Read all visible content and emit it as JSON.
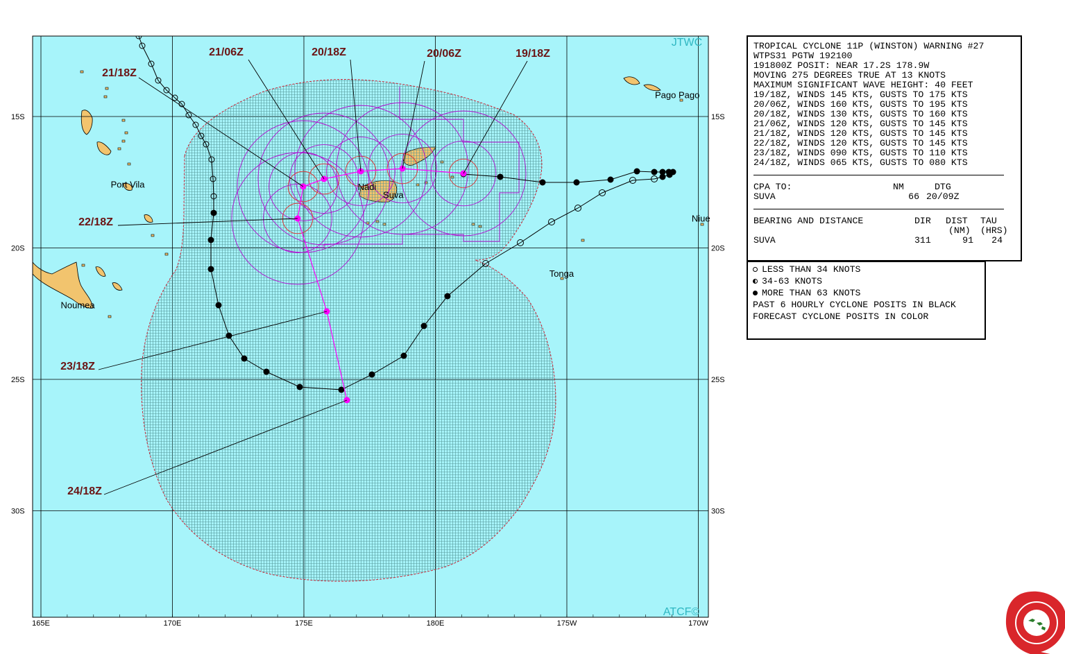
{
  "map": {
    "lon_labels": [
      "165E",
      "170E",
      "175E",
      "180E",
      "175W",
      "170W"
    ],
    "lat_labels": [
      "15S",
      "20S",
      "25S",
      "30S"
    ],
    "agency": "JTWC",
    "atcf": "ATCF©",
    "colors": {
      "ocean": "#a7f4fa",
      "land": "#f2c46e",
      "track_past": "#000000",
      "track_forecast": "#ff00ff",
      "wind_radius": "#b010d0",
      "danger_area": "#cc2233"
    },
    "places": [
      {
        "name": "Pago Pago",
        "lon": -170.8,
        "lat": -14.3
      },
      {
        "name": "Port Vila",
        "lon": 168.3,
        "lat": -17.7
      },
      {
        "name": "Noumea",
        "lon": 166.4,
        "lat": -22.3
      },
      {
        "name": "Nadi",
        "lon": 177.4,
        "lat": -17.8
      },
      {
        "name": "Suva",
        "lon": 178.4,
        "lat": -18.1
      },
      {
        "name": "Tonga",
        "lon": -175.2,
        "lat": -21.1
      },
      {
        "name": "Niue",
        "lon": -169.9,
        "lat": -19.0
      }
    ],
    "forecast_labels": [
      "19/18Z",
      "20/06Z",
      "20/18Z",
      "21/06Z",
      "21/18Z",
      "22/18Z",
      "23/18Z",
      "24/18Z"
    ]
  },
  "warning": {
    "lines": [
      "TROPICAL CYCLONE 11P (WINSTON) WARNING #27",
      "WTPS31 PGTW 192100",
      "191800Z POSIT: NEAR 17.2S 178.9W",
      "MOVING 275 DEGREES TRUE AT 13 KNOTS",
      "MAXIMUM SIGNIFICANT WAVE HEIGHT: 40 FEET",
      "19/18Z, WINDS 145 KTS, GUSTS TO 175 KTS",
      "20/06Z, WINDS 160 KTS, GUSTS TO 195 KTS",
      "20/18Z, WINDS 130 KTS, GUSTS TO 160 KTS",
      "21/06Z, WINDS 120 KTS, GUSTS TO 145 KTS",
      "21/18Z, WINDS 120 KTS, GUSTS TO 145 KTS",
      "22/18Z, WINDS 120 KTS, GUSTS TO 145 KTS",
      "23/18Z, WINDS 090 KTS, GUSTS TO 110 KTS",
      "24/18Z, WINDS 065 KTS, GUSTS TO 080 KTS"
    ],
    "cpa": {
      "label": "CPA TO:",
      "nm_h": "NM",
      "dtg_h": "DTG",
      "place": "SUVA",
      "nm": "66",
      "dtg": "20/09Z"
    },
    "bearing": {
      "label": "BEARING AND DISTANCE",
      "dir_h": "DIR",
      "dist_h": "DIST",
      "tau_h": "TAU",
      "nm_h": "(NM)",
      "hrs_h": "(HRS)",
      "place": "SUVA",
      "dir": "311",
      "dist": "91",
      "tau": "24"
    }
  },
  "legend": {
    "lt34": "LESS THAN 34 KNOTS",
    "k34_63": "34-63 KNOTS",
    "gt63": "MORE THAN 63 KNOTS",
    "past": "PAST 6 HOURLY CYCLONE POSITS IN BLACK",
    "forecast": "FORECAST CYCLONE POSITS IN COLOR"
  }
}
